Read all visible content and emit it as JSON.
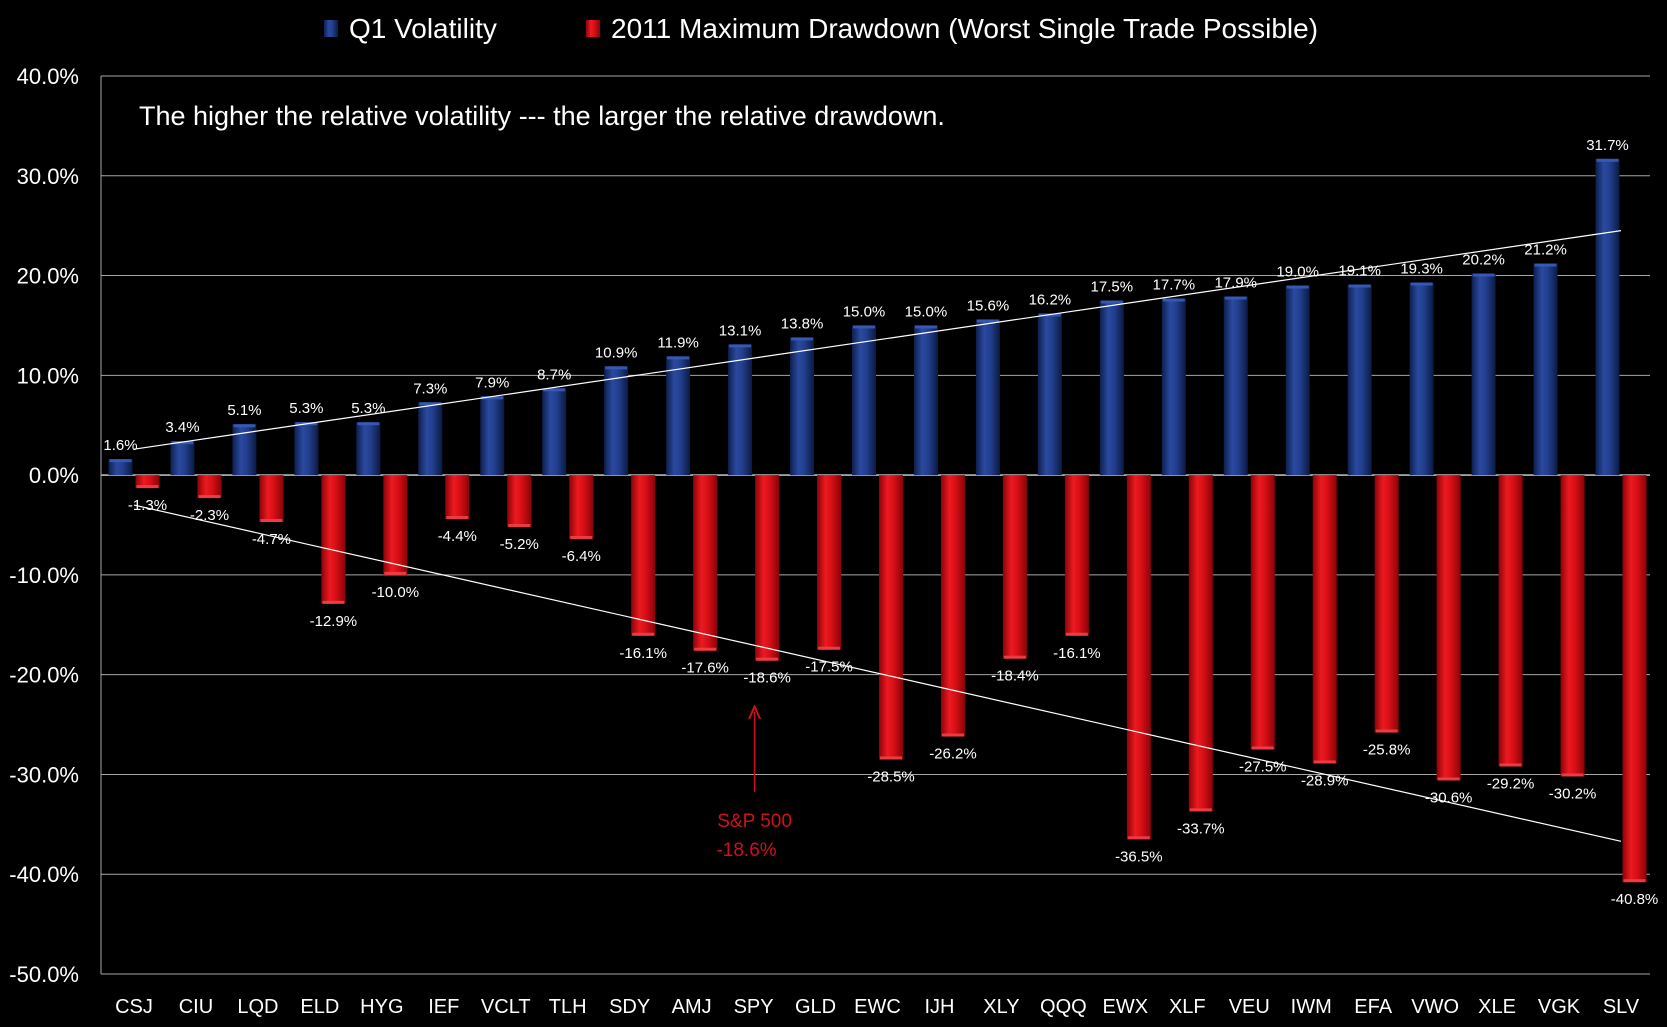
{
  "chart_data": {
    "type": "bar",
    "annotation_text": "The higher the relative volatility --- the larger the relative drawdown.",
    "callout": {
      "category": "SPY",
      "lines": [
        "S&P 500",
        "-18.6%"
      ],
      "color": "#d0101e"
    },
    "ylim": [
      -50,
      40
    ],
    "y_ticks": [
      40,
      30,
      20,
      10,
      0,
      -10,
      -20,
      -30,
      -40,
      -50
    ],
    "y_tick_labels": [
      "40.0%",
      "30.0%",
      "20.0%",
      "10.0%",
      "0.0%",
      "-10.0%",
      "-20.0%",
      "-30.0%",
      "-40.0%",
      "-50.0%"
    ],
    "grid": true,
    "legend_position": "top",
    "categories": [
      "CSJ",
      "CIU",
      "LQD",
      "ELD",
      "HYG",
      "IEF",
      "VCLT",
      "TLH",
      "SDY",
      "AMJ",
      "SPY",
      "GLD",
      "EWC",
      "IJH",
      "XLY",
      "QQQ",
      "EWX",
      "XLF",
      "VEU",
      "IWM",
      "EFA",
      "VWO",
      "XLE",
      "VGK",
      "SLV"
    ],
    "series": [
      {
        "name": "Q1 Volatility",
        "color": "#1f3a8a",
        "values": [
          1.6,
          3.4,
          5.1,
          5.3,
          5.3,
          7.3,
          7.9,
          8.7,
          10.9,
          11.9,
          13.1,
          13.8,
          15.0,
          15.0,
          15.6,
          16.2,
          17.5,
          17.7,
          17.9,
          19.0,
          19.1,
          19.3,
          20.2,
          21.2,
          31.7
        ],
        "labels": [
          "1.6%",
          "3.4%",
          "5.1%",
          "5.3%",
          "5.3%",
          "7.3%",
          "7.9%",
          "8.7%",
          "10.9%",
          "11.9%",
          "13.1%",
          "13.8%",
          "15.0%",
          "15.0%",
          "15.6%",
          "16.2%",
          "17.5%",
          "17.7%",
          "17.9%",
          "19.0%",
          "19.1%",
          "19.3%",
          "20.2%",
          "21.2%",
          "31.7%"
        ]
      },
      {
        "name": "2011 Maximum Drawdown (Worst Single Trade Possible)",
        "color": "#d40a12",
        "values": [
          -1.3,
          -2.3,
          -4.7,
          -12.9,
          -10.0,
          -4.4,
          -5.2,
          -6.4,
          -16.1,
          -17.6,
          -18.6,
          -17.5,
          -28.5,
          -26.2,
          -18.4,
          -16.1,
          -36.5,
          -33.7,
          -27.5,
          -28.9,
          -25.8,
          -30.6,
          -29.2,
          -30.2,
          -40.8
        ],
        "labels": [
          "-1.3%",
          "-2.3%",
          "-4.7%",
          "-12.9%",
          "-10.0%",
          "-4.4%",
          "-5.2%",
          "-6.4%",
          "-16.1%",
          "-17.6%",
          "-18.6%",
          "-17.5%",
          "-28.5%",
          "-26.2%",
          "-18.4%",
          "-16.1%",
          "-36.5%",
          "-33.7%",
          "-27.5%",
          "-28.9%",
          "-25.8%",
          "-30.6%",
          "-29.2%",
          "-30.2%",
          "-40.8%"
        ]
      }
    ],
    "trendlines": [
      {
        "from": [
          "CSJ",
          2.6
        ],
        "to": [
          "SLV",
          24.5
        ],
        "color": "#ffffff"
      },
      {
        "from": [
          "CSJ",
          -3.0
        ],
        "to": [
          "SLV",
          -36.7
        ],
        "color": "#ffffff"
      }
    ]
  }
}
